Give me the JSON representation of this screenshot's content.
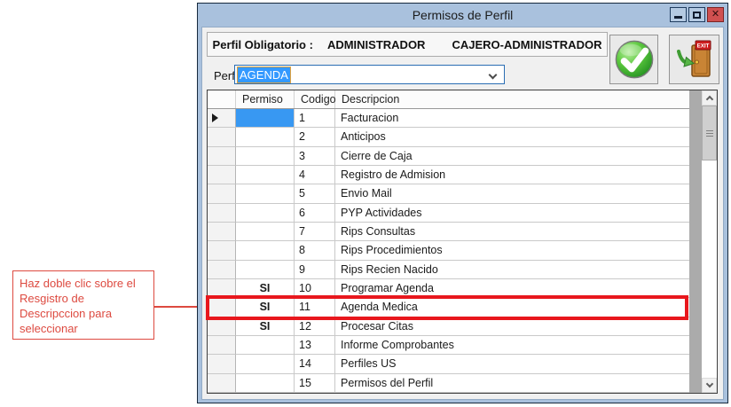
{
  "window": {
    "title": "Permisos de Perfil"
  },
  "header": {
    "label": "Perfil Obligatorio :",
    "profile1": "ADMINISTRADOR",
    "profile2": "CAJERO-ADMINISTRADOR"
  },
  "perfil": {
    "label": "Perfil",
    "value": "AGENDA"
  },
  "grid": {
    "columns": {
      "permiso": "Permiso",
      "codigo": "Codigo",
      "descripcion": "Descripcion"
    },
    "rows": [
      {
        "permiso": "",
        "codigo": "1",
        "descripcion": "Facturacion"
      },
      {
        "permiso": "",
        "codigo": "2",
        "descripcion": "Anticipos"
      },
      {
        "permiso": "",
        "codigo": "3",
        "descripcion": "Cierre de Caja"
      },
      {
        "permiso": "",
        "codigo": "4",
        "descripcion": "Registro de Admision"
      },
      {
        "permiso": "",
        "codigo": "5",
        "descripcion": "Envio Mail"
      },
      {
        "permiso": "",
        "codigo": "6",
        "descripcion": "PYP Actividades"
      },
      {
        "permiso": "",
        "codigo": "7",
        "descripcion": "Rips Consultas"
      },
      {
        "permiso": "",
        "codigo": "8",
        "descripcion": "Rips Procedimientos"
      },
      {
        "permiso": "",
        "codigo": "9",
        "descripcion": "Rips Recien Nacido"
      },
      {
        "permiso": "SI",
        "codigo": "10",
        "descripcion": "Programar Agenda"
      },
      {
        "permiso": "SI",
        "codigo": "11",
        "descripcion": "Agenda Medica"
      },
      {
        "permiso": "SI",
        "codigo": "12",
        "descripcion": "Procesar Citas"
      },
      {
        "permiso": "",
        "codigo": "13",
        "descripcion": "Informe Comprobantes"
      },
      {
        "permiso": "",
        "codigo": "14",
        "descripcion": "Perfiles US"
      },
      {
        "permiso": "",
        "codigo": "15",
        "descripcion": "Permisos del Perfil"
      }
    ],
    "current_row_codigo": "1",
    "highlighted_row_codigo": "11"
  },
  "annotation": {
    "text": "Haz doble clic sobre el\nResgistro de\nDescripccion para\nseleccionar"
  },
  "colors": {
    "titlebar": "#a9c1dd",
    "selection_blue": "#3399ff",
    "highlight_red": "#e8171d",
    "annotation_red": "#dd4a40",
    "client_bg": "#f0f0f0",
    "grid_filler": "#ababab"
  }
}
